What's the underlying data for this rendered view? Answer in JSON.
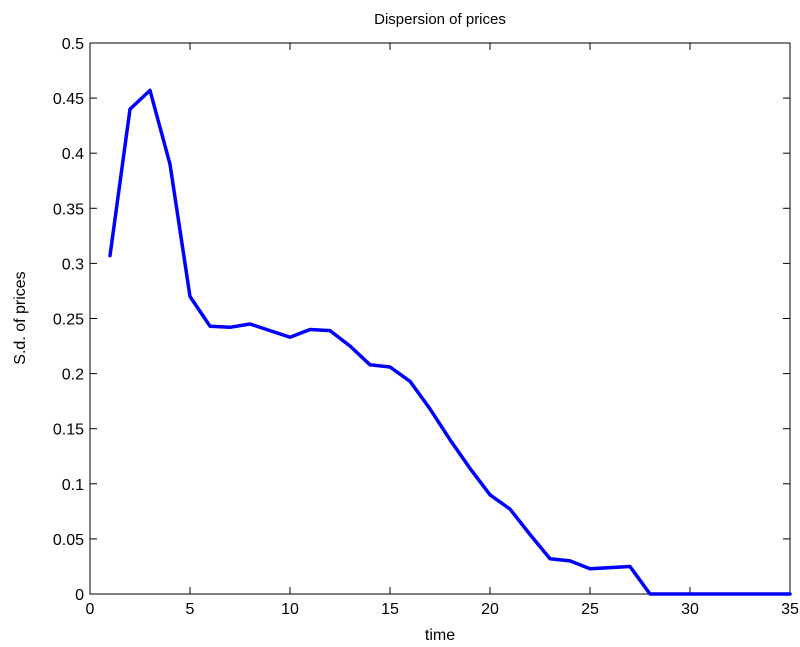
{
  "chart_data": {
    "type": "line",
    "title": "Dispersion of prices",
    "xlabel": "time",
    "ylabel": "S.d. of prices",
    "xlim": [
      0,
      35
    ],
    "ylim": [
      0,
      0.5
    ],
    "xticks": [
      0,
      5,
      10,
      15,
      20,
      25,
      30,
      35
    ],
    "yticks": [
      0,
      0.05,
      0.1,
      0.15,
      0.2,
      0.25,
      0.3,
      0.35,
      0.4,
      0.45,
      0.5
    ],
    "xtick_labels": [
      "0",
      "5",
      "10",
      "15",
      "20",
      "25",
      "30",
      "35"
    ],
    "ytick_labels": [
      "0",
      "0.05",
      "0.1",
      "0.15",
      "0.2",
      "0.25",
      "0.3",
      "0.35",
      "0.4",
      "0.45",
      "0.5"
    ],
    "grid": false,
    "legend": "none",
    "series": [
      {
        "color": "#0000ff",
        "x": [
          1,
          2,
          3,
          4,
          5,
          6,
          7,
          8,
          9,
          10,
          11,
          12,
          13,
          14,
          15,
          16,
          17,
          18,
          19,
          20,
          21,
          22,
          23,
          24,
          25,
          26,
          27,
          28,
          29,
          30,
          31,
          32,
          33,
          34,
          35
        ],
        "y": [
          0.307,
          0.44,
          0.457,
          0.39,
          0.27,
          0.243,
          0.242,
          0.245,
          0.239,
          0.233,
          0.24,
          0.239,
          0.225,
          0.208,
          0.206,
          0.193,
          0.168,
          0.14,
          0.114,
          0.09,
          0.077,
          0.054,
          0.032,
          0.03,
          0.023,
          0.024,
          0.025,
          0.0,
          0.0,
          0.0,
          0.0,
          0.0,
          0.0,
          0.0,
          0.0
        ]
      }
    ]
  }
}
